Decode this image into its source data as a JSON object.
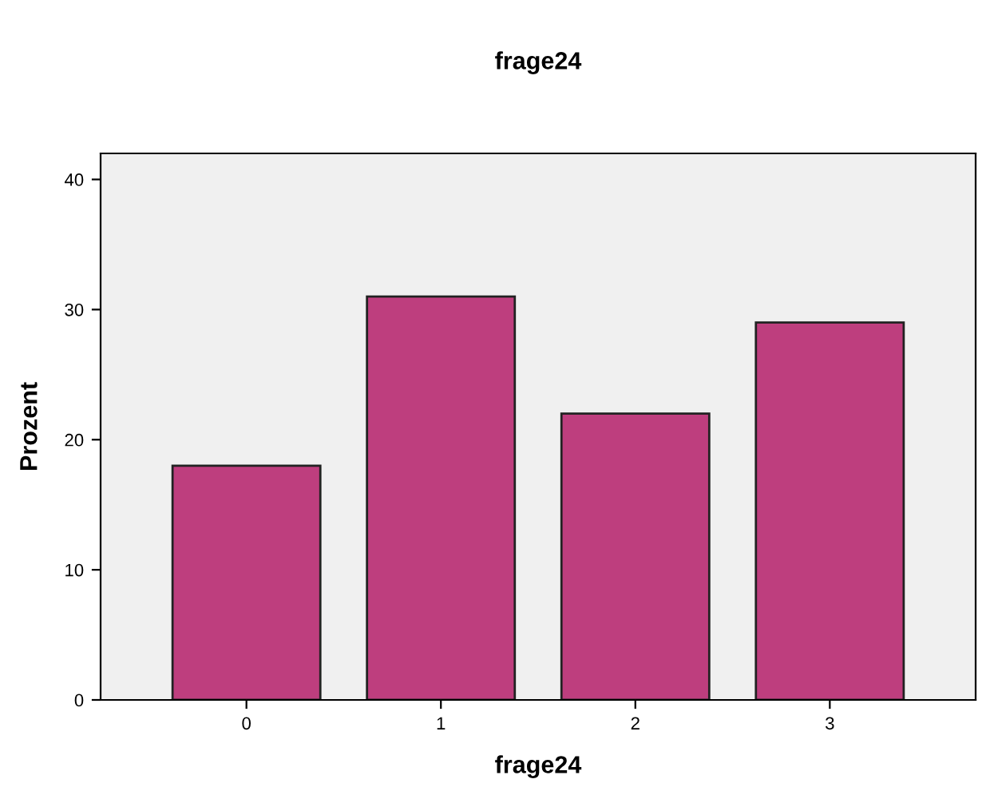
{
  "chart_data": {
    "type": "bar",
    "title": "frage24",
    "xlabel": "frage24",
    "ylabel": "Prozent",
    "categories": [
      "0",
      "1",
      "2",
      "3"
    ],
    "values": [
      18,
      31,
      22,
      29
    ],
    "color": "#be3e7e",
    "ylim": [
      0,
      42
    ],
    "yticks": [
      0,
      10,
      20,
      30,
      40
    ],
    "grid": false,
    "legend": false
  }
}
